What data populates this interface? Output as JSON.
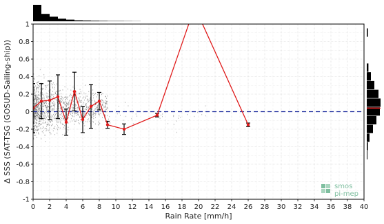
{
  "chart_data": {
    "type": "line",
    "xlabel": "Rain Rate [mm/h]",
    "ylabel": "Δ SSS (SAT-TSG (GOSUD-Sailing-ship))",
    "xlim": [
      0,
      40
    ],
    "ylim": [
      -1,
      1
    ],
    "x_ticks": [
      "0",
      "2",
      "4",
      "6",
      "8",
      "10",
      "12",
      "14",
      "16",
      "18",
      "20",
      "22",
      "24",
      "26",
      "28",
      "30",
      "32",
      "34",
      "36",
      "38",
      "40"
    ],
    "y_ticks": [
      "-1",
      "-0.8",
      "-0.6",
      "-0.4",
      "-0.2",
      "0",
      "0.2",
      "0.4",
      "0.6",
      "0.8",
      "1"
    ],
    "grid": true,
    "reference_line": {
      "y": 0,
      "color": "#1a2a9c",
      "style": "dashed"
    },
    "series": [
      {
        "color": "#e01b1b",
        "points": [
          {
            "x": 0,
            "y": 0.04,
            "err": 0.28
          },
          {
            "x": 1,
            "y": 0.12,
            "err": 0.2
          },
          {
            "x": 2,
            "y": 0.13,
            "err": 0.22
          },
          {
            "x": 3,
            "y": 0.17,
            "err": 0.25
          },
          {
            "x": 4,
            "y": -0.12,
            "err": 0.15
          },
          {
            "x": 5,
            "y": 0.23,
            "err": 0.22
          },
          {
            "x": 6,
            "y": -0.09,
            "err": 0.15
          },
          {
            "x": 7,
            "y": 0.06,
            "err": 0.25
          },
          {
            "x": 8,
            "y": 0.12,
            "err": 0.1
          },
          {
            "x": 9,
            "y": -0.15,
            "err": 0.04
          },
          {
            "x": 11,
            "y": -0.2,
            "err": 0.06
          },
          {
            "x": 15,
            "y": -0.04,
            "err": 0.02
          },
          {
            "x": 19,
            "y": 1.05,
            "err": 0.04
          },
          {
            "x": 20,
            "y": 1.1,
            "err": 0
          },
          {
            "x": 26,
            "y": -0.15,
            "err": 0.02
          }
        ]
      }
    ],
    "top_histogram": [
      1.0,
      0.45,
      0.28,
      0.16,
      0.1,
      0.06,
      0.05,
      0.04,
      0.03,
      0.02,
      0.02,
      0.015,
      0.01
    ],
    "right_histogram": [
      {
        "y": 0.9,
        "v": 0.08
      },
      {
        "y": 0.5,
        "v": 0.12
      },
      {
        "y": 0.4,
        "v": 0.3
      },
      {
        "y": 0.3,
        "v": 0.55
      },
      {
        "y": 0.2,
        "v": 0.85
      },
      {
        "y": 0.1,
        "v": 1.0
      },
      {
        "y": 0.0,
        "v": 0.95
      },
      {
        "y": -0.1,
        "v": 0.7
      },
      {
        "y": -0.2,
        "v": 0.45
      },
      {
        "y": -0.3,
        "v": 0.2
      },
      {
        "y": -0.4,
        "v": 0.08
      },
      {
        "y": -0.5,
        "v": 0.05
      }
    ],
    "right_histogram_marker": {
      "y": 0.04,
      "color": "#e01b1b"
    }
  },
  "logo": {
    "line1": "smos",
    "line2": "pi-mep",
    "color": "#7fbfa0"
  },
  "colors": {
    "scatter": "#555555",
    "grid": "#d8d8d8",
    "hist": "#000000"
  }
}
